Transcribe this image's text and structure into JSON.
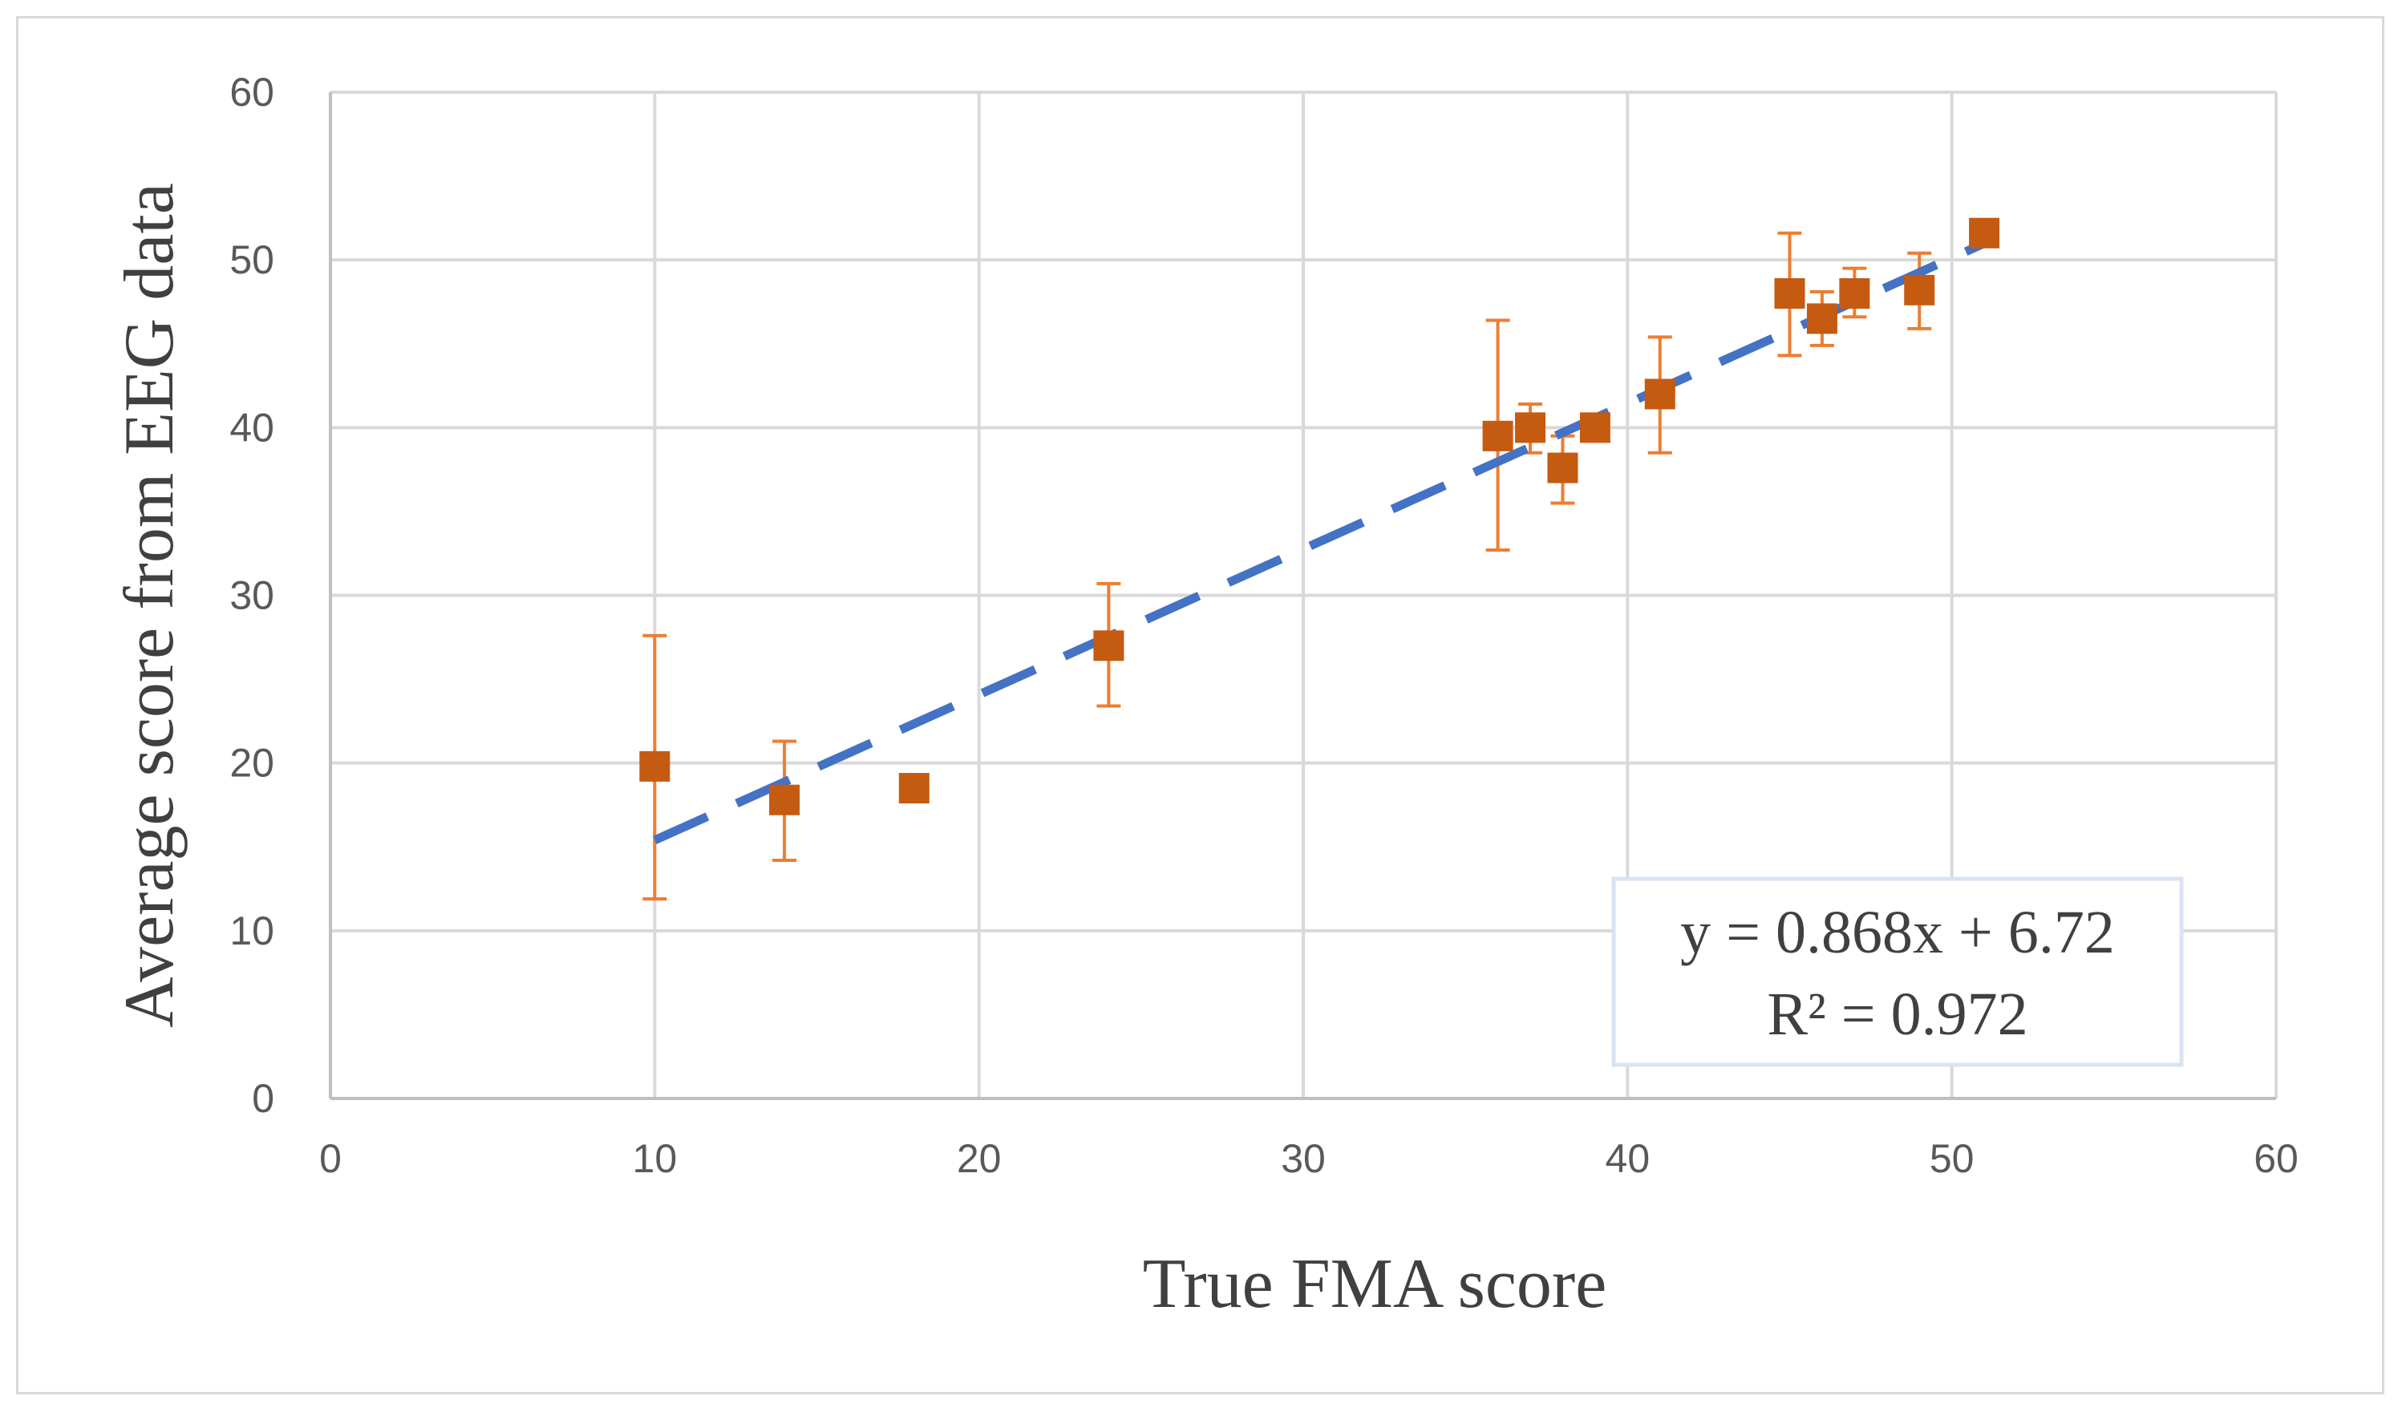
{
  "chart_data": {
    "type": "scatter",
    "title": "",
    "xlabel": "True FMA score",
    "ylabel": "Average score from EEG data",
    "xlim": [
      0,
      60
    ],
    "ylim": [
      0,
      60
    ],
    "x_ticks": [
      "0",
      "10",
      "20",
      "30",
      "40",
      "50",
      "60"
    ],
    "y_ticks": [
      "0",
      "10",
      "20",
      "30",
      "40",
      "50",
      "60"
    ],
    "grid": true,
    "legend": "none",
    "series": [
      {
        "name": "Average score",
        "marker": "square",
        "color": "#c55a11",
        "errorbar_color": "#ed7d31",
        "points": [
          {
            "x": 10,
            "y": 19.8,
            "err_low": 11.9,
            "err_high": 27.6
          },
          {
            "x": 14,
            "y": 17.8,
            "err_low": 14.2,
            "err_high": 21.3
          },
          {
            "x": 18,
            "y": 18.5,
            "err_low": 18.5,
            "err_high": 18.5
          },
          {
            "x": 24,
            "y": 27.0,
            "err_low": 23.4,
            "err_high": 30.7
          },
          {
            "x": 36,
            "y": 39.5,
            "err_low": 32.7,
            "err_high": 46.4
          },
          {
            "x": 37,
            "y": 40.0,
            "err_low": 38.5,
            "err_high": 41.4
          },
          {
            "x": 38,
            "y": 37.6,
            "err_low": 35.5,
            "err_high": 39.5
          },
          {
            "x": 39,
            "y": 40.0,
            "err_low": 40.0,
            "err_high": 40.0
          },
          {
            "x": 41,
            "y": 42.0,
            "err_low": 38.5,
            "err_high": 45.4
          },
          {
            "x": 45,
            "y": 48.0,
            "err_low": 44.3,
            "err_high": 51.6
          },
          {
            "x": 46,
            "y": 46.5,
            "err_low": 44.9,
            "err_high": 48.1
          },
          {
            "x": 47,
            "y": 48.0,
            "err_low": 46.6,
            "err_high": 49.5
          },
          {
            "x": 49,
            "y": 48.2,
            "err_low": 45.9,
            "err_high": 50.4
          },
          {
            "x": 51,
            "y": 51.6,
            "err_low": 51.0,
            "err_high": 52.1
          }
        ]
      }
    ],
    "trendline": {
      "type": "linear",
      "slope": 0.868,
      "intercept": 6.72,
      "x_range": [
        10,
        51
      ],
      "color": "#4472c4",
      "style": "dashed",
      "equation_text": "y = 0.868x + 6.72",
      "r2_text": "R² = 0.972"
    }
  }
}
